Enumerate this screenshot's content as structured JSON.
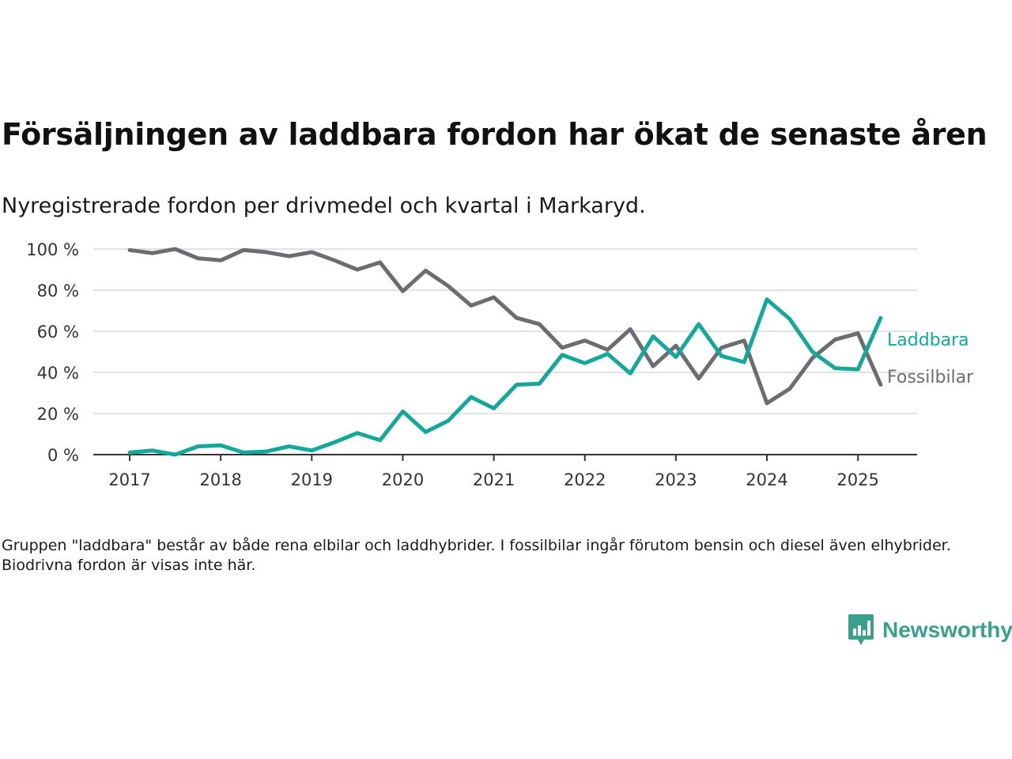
{
  "title": "Försäljningen av laddbara fordon har ökat de senaste åren",
  "subtitle": "Nyregistrerade fordon per drivmedel och kvartal i Markaryd.",
  "note": "Gruppen \"laddbara\" består av både rena elbilar och laddhybrider. I fossilbilar ingår förutom bensin och diesel även elhybrider. Biodrivna fordon är visas inte här.",
  "brand": {
    "name": "Newsworthy",
    "color": "#3aa08c"
  },
  "chart_data": {
    "type": "line",
    "x_ticks": [
      "2017",
      "2018",
      "2019",
      "2020",
      "2021",
      "2022",
      "2023",
      "2024",
      "2025"
    ],
    "y_ticks": [
      "0 %",
      "20 %",
      "40 %",
      "60 %",
      "80 %",
      "100 %"
    ],
    "ylim": [
      0,
      100
    ],
    "xlim": [
      2016.6,
      2025.65
    ],
    "grid": true,
    "legend": "inline-right",
    "x": [
      2017.0,
      2017.25,
      2017.5,
      2017.75,
      2018.0,
      2018.25,
      2018.5,
      2018.75,
      2019.0,
      2019.25,
      2019.5,
      2019.75,
      2020.0,
      2020.25,
      2020.5,
      2020.75,
      2021.0,
      2021.25,
      2021.5,
      2021.75,
      2022.0,
      2022.25,
      2022.5,
      2022.75,
      2023.0,
      2023.25,
      2023.5,
      2023.75,
      2024.0,
      2024.25,
      2024.5,
      2024.75,
      2025.0,
      2025.25
    ],
    "series": [
      {
        "name": "Laddbara",
        "color": "#13a89a",
        "values": [
          1,
          2,
          0,
          4,
          4.5,
          1,
          1.5,
          4,
          2,
          6,
          10.5,
          7,
          21,
          11,
          16.5,
          28,
          22.5,
          34,
          34.5,
          48.5,
          44.5,
          49,
          39.5,
          57.5,
          47.5,
          63.5,
          48,
          45,
          75.5,
          66,
          50,
          42,
          41.5,
          66.5
        ]
      },
      {
        "name": "Fossilbilar",
        "color": "#6d6c71",
        "values": [
          99.5,
          98,
          100,
          95.5,
          94.5,
          99.5,
          98.5,
          96.5,
          98.5,
          94.5,
          90,
          93.5,
          79.5,
          89.5,
          82,
          72.5,
          76.5,
          66.5,
          63.5,
          52,
          55.5,
          51,
          61,
          43,
          53,
          37,
          52,
          55.5,
          25,
          32,
          47,
          56,
          59,
          34
        ]
      }
    ]
  }
}
